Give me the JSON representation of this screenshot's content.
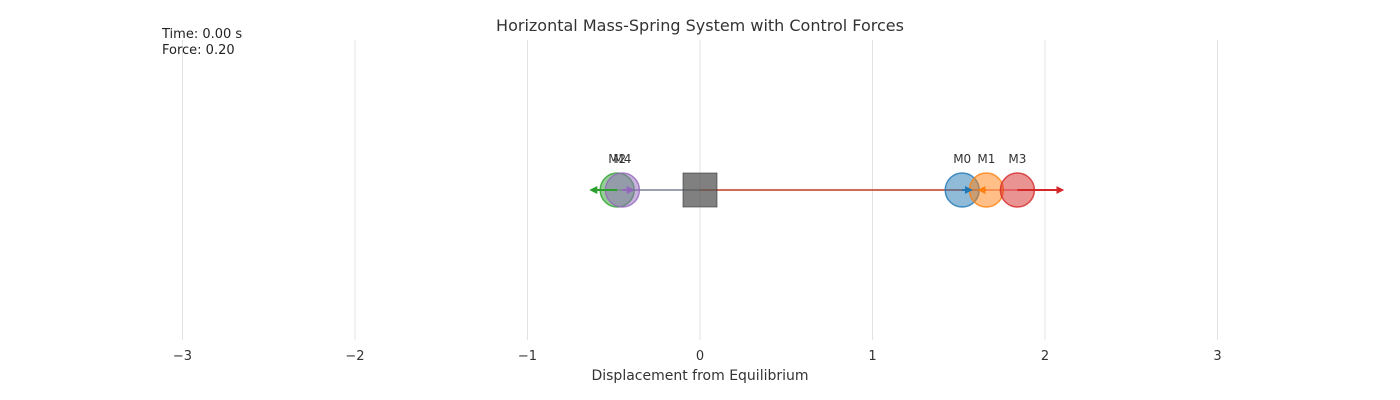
{
  "chart_data": {
    "type": "scatter",
    "title": "Horizontal Mass-Spring System with Control Forces",
    "xlabel": "Displacement from Equilibrium",
    "xlim": [
      -3.2,
      3.2
    ],
    "xticks": [
      -3,
      -2,
      -1,
      0,
      1,
      2,
      3
    ],
    "xtick_labels": [
      "−3",
      "−2",
      "−1",
      "0",
      "1",
      "2",
      "3"
    ],
    "grid": true,
    "info": {
      "time_text": "Time: 0.00 s",
      "force_text": "Force: 0.20"
    },
    "anchor": {
      "x": 0,
      "color": "#555555"
    },
    "masses": [
      {
        "label": "M0",
        "x": 1.52,
        "force_x": 1.57,
        "color": "#1f77b4"
      },
      {
        "label": "M1",
        "x": 1.66,
        "force_x": 1.62,
        "color": "#ff7f0e"
      },
      {
        "label": "M2",
        "x": -0.48,
        "force_x": -0.63,
        "color": "#2ca02c"
      },
      {
        "label": "M3",
        "x": 1.84,
        "force_x": 2.1,
        "color": "#d62728"
      },
      {
        "label": "M4",
        "x": -0.45,
        "force_x": -0.39,
        "color": "#9467bd"
      }
    ]
  }
}
